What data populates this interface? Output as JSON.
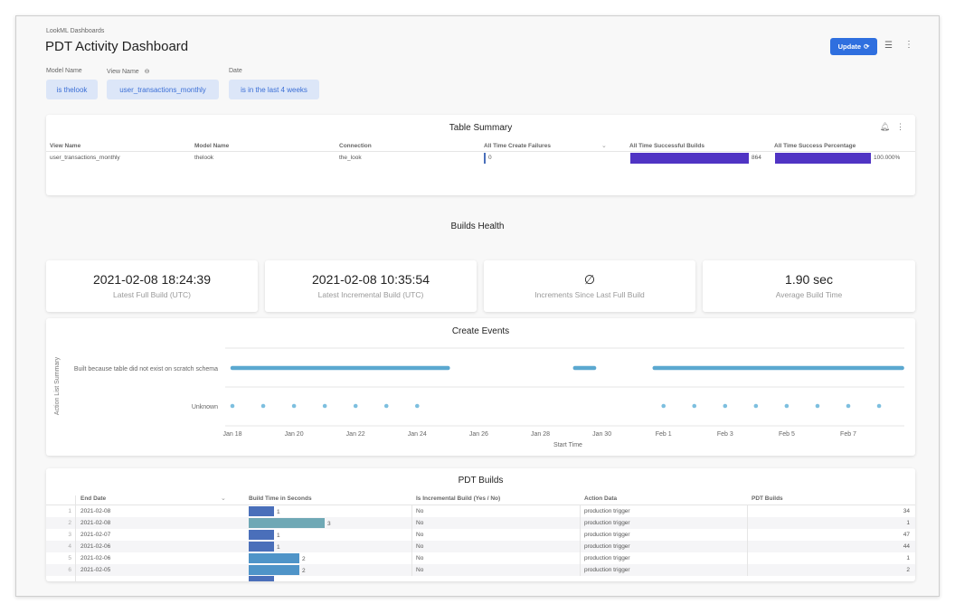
{
  "header": {
    "breadcrumb": "LookML Dashboards",
    "title": "PDT Activity Dashboard",
    "update_label": "Update",
    "refresh_icon": "refresh-icon",
    "filter_icon": "filter-icon",
    "menu_icon": "more-vert-icon"
  },
  "filters": [
    {
      "label": "Model Name",
      "value": "is thelook"
    },
    {
      "label": "View Name",
      "value": "user_transactions_monthly",
      "icon": "link-icon"
    },
    {
      "label": "Date",
      "value": "is in the last 4 weeks"
    }
  ],
  "table_summary": {
    "title": "Table Summary",
    "columns": [
      "View Name",
      "Model Name",
      "Connection",
      "All Time Create Failures",
      "All Time Successful Builds",
      "All Time Success Percentage"
    ],
    "row": {
      "view": "user_transactions_monthly",
      "model": "thelook",
      "connection": "the_look",
      "failures": "0",
      "builds": "864",
      "success": "100.000%"
    },
    "bar_color": "#5034c4"
  },
  "builds_health": {
    "title": "Builds Health"
  },
  "kpis": [
    {
      "value": "2021-02-08 18:24:39",
      "label": "Latest Full Build (UTC)"
    },
    {
      "value": "2021-02-08 10:35:54",
      "label": "Latest Incremental Build (UTC)"
    },
    {
      "value": "∅",
      "label": "Increments Since Last Full Build"
    },
    {
      "value": "1.90 sec",
      "label": "Average Build Time"
    }
  ],
  "chart_data": {
    "type": "scatter",
    "title": "Create Events",
    "xlabel": "Start Time",
    "ylabel": "Action List Summary",
    "categories": [
      "Built because table did not exist on scratch schema",
      "Unknown"
    ],
    "x_ticks": [
      "Jan 18",
      "Jan 20",
      "Jan 22",
      "Jan 24",
      "Jan 26",
      "Jan 28",
      "Jan 30",
      "Feb 1",
      "Feb 3",
      "Feb 5",
      "Feb 7"
    ],
    "xlim": [
      "2021-01-17T18:00",
      "2021-02-09T00:00"
    ],
    "color": "#5ba8d0",
    "series": [
      {
        "category": "Built because table did not exist on scratch schema",
        "dense_ranges": [
          [
            "2021-01-18T00:00",
            "2021-01-25T00:00"
          ],
          [
            "2021-01-29T03:00",
            "2021-01-29T18:00"
          ],
          [
            "2021-01-31T17:00",
            "2021-02-08T18:00"
          ]
        ]
      },
      {
        "category": "Unknown",
        "points": [
          "2021-01-18",
          "2021-01-19",
          "2021-01-20",
          "2021-01-21",
          "2021-01-22",
          "2021-01-23",
          "2021-01-24",
          "2021-02-01",
          "2021-02-02",
          "2021-02-03",
          "2021-02-04",
          "2021-02-05",
          "2021-02-06",
          "2021-02-07",
          "2021-02-08"
        ]
      }
    ]
  },
  "pdt_builds": {
    "title": "PDT Builds",
    "columns": [
      "End Date",
      "Build Time in Seconds",
      "Is Incremental Build (Yes / No)",
      "Action Data",
      "PDT Builds"
    ],
    "rows": [
      {
        "n": "1",
        "date": "2021-02-08",
        "time": 1,
        "time_label": "1",
        "inc": "No",
        "action": "production trigger",
        "builds": "34"
      },
      {
        "n": "2",
        "date": "2021-02-08",
        "time": 3,
        "time_label": "3",
        "inc": "No",
        "action": "production trigger",
        "builds": "1"
      },
      {
        "n": "3",
        "date": "2021-02-07",
        "time": 1,
        "time_label": "1",
        "inc": "No",
        "action": "production trigger",
        "builds": "47"
      },
      {
        "n": "4",
        "date": "2021-02-06",
        "time": 1,
        "time_label": "1",
        "inc": "No",
        "action": "production trigger",
        "builds": "44"
      },
      {
        "n": "5",
        "date": "2021-02-06",
        "time": 2,
        "time_label": "2",
        "inc": "No",
        "action": "production trigger",
        "builds": "1"
      },
      {
        "n": "6",
        "date": "2021-02-05",
        "time": 2,
        "time_label": "2",
        "inc": "No",
        "action": "production trigger",
        "builds": "2"
      }
    ],
    "bar_colors": {
      "1": "#4a6fba",
      "2": "#4f94c8",
      "3": "#6fa8b5"
    }
  }
}
